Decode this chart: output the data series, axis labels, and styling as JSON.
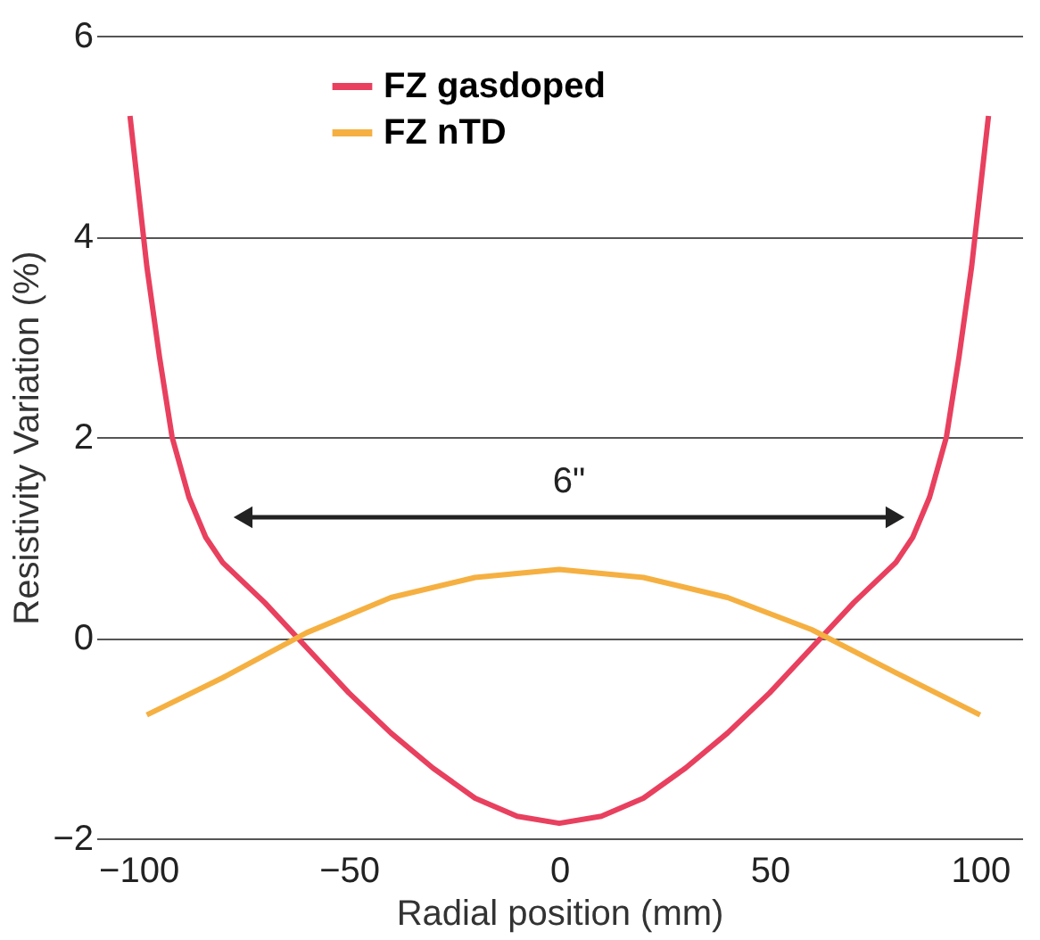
{
  "chart_data": {
    "type": "line",
    "xlabel": "Radial position (mm)",
    "ylabel": "Resistivity Variation (%)",
    "xlim": [
      -110,
      110
    ],
    "ylim": [
      -2,
      6
    ],
    "xticks": [
      -100,
      -50,
      0,
      50,
      100
    ],
    "yticks": [
      -2,
      0,
      2,
      4,
      6
    ],
    "grid": "y",
    "legend": "top",
    "marker": "none",
    "line_style": "solid",
    "series": [
      {
        "name": "FZ gasdoped",
        "color": "#e8405e",
        "x": [
          -102,
          -98,
          -95,
          -92,
          -88,
          -84,
          -80,
          -70,
          -60,
          -50,
          -40,
          -30,
          -20,
          -10,
          0,
          10,
          20,
          30,
          40,
          50,
          60,
          70,
          80,
          84,
          88,
          92,
          95,
          98,
          102
        ],
        "values": [
          5.2,
          3.7,
          2.8,
          2.0,
          1.4,
          1.0,
          0.75,
          0.35,
          -0.1,
          -0.55,
          -0.95,
          -1.3,
          -1.6,
          -1.78,
          -1.85,
          -1.78,
          -1.6,
          -1.3,
          -0.95,
          -0.55,
          -0.1,
          0.35,
          0.75,
          1.0,
          1.4,
          2.0,
          2.8,
          3.7,
          5.2
        ]
      },
      {
        "name": "FZ nTD",
        "color": "#f5b041",
        "x": [
          -98,
          -80,
          -60,
          -40,
          -20,
          0,
          20,
          40,
          60,
          80,
          100
        ],
        "values": [
          -0.77,
          -0.4,
          0.05,
          0.4,
          0.6,
          0.68,
          0.6,
          0.4,
          0.08,
          -0.35,
          -0.77
        ]
      }
    ],
    "annotations": [
      "6\""
    ]
  }
}
